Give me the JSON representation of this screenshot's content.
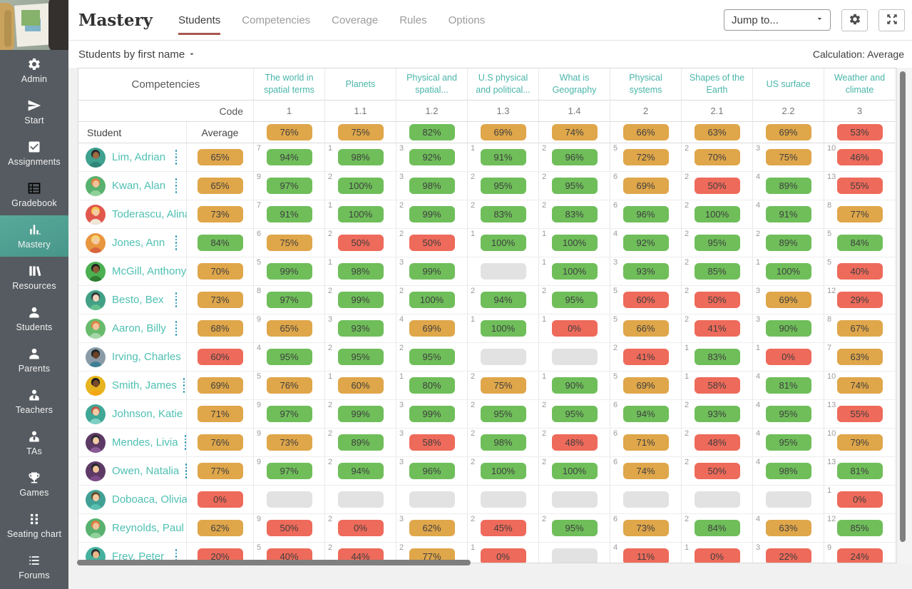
{
  "header": {
    "title": "Mastery",
    "tabs": [
      {
        "label": "Students",
        "active": true
      },
      {
        "label": "Competencies",
        "active": false
      },
      {
        "label": "Coverage",
        "active": false
      },
      {
        "label": "Rules",
        "active": false
      },
      {
        "label": "Options",
        "active": false
      }
    ],
    "jump_to_label": "Jump to..."
  },
  "subheader": {
    "sort_label": "Students by first name",
    "calculation_label": "Calculation: Average"
  },
  "sidebar": {
    "items": [
      {
        "label": "Admin",
        "icon": "gear-icon",
        "active": false
      },
      {
        "label": "Start",
        "icon": "send-icon",
        "active": false
      },
      {
        "label": "Assignments",
        "icon": "checkbox-icon",
        "active": false
      },
      {
        "label": "Gradebook",
        "icon": "gradebook-icon",
        "active": false
      },
      {
        "label": "Mastery",
        "icon": "bar-chart-icon",
        "active": true
      },
      {
        "label": "Resources",
        "icon": "books-icon",
        "active": false
      },
      {
        "label": "Students",
        "icon": "person-icon",
        "active": false
      },
      {
        "label": "Parents",
        "icon": "person-icon",
        "active": false
      },
      {
        "label": "Teachers",
        "icon": "person-tie-icon",
        "active": false
      },
      {
        "label": "TAs",
        "icon": "person-tie-icon",
        "active": false
      },
      {
        "label": "Games",
        "icon": "trophy-icon",
        "active": false
      },
      {
        "label": "Seating chart",
        "icon": "seating-grid-icon",
        "active": false
      },
      {
        "label": "Forums",
        "icon": "forum-list-icon",
        "active": false
      }
    ]
  },
  "colors": {
    "green": "#6fbe5a",
    "orange": "#dfa64a",
    "red": "#ee6a5a",
    "empty": "#e2e2e2",
    "accent_teal": "#4dbcae",
    "tab_underline": "#a8564f",
    "sidebar_active": "#4f9f91",
    "scrollbar": "#7f7f7f"
  },
  "table": {
    "corner_label": "Competencies",
    "code_label": "Code",
    "student_label": "Student",
    "average_label": "Average",
    "columns": [
      {
        "name": "The world in spatial terms",
        "code": "1",
        "avg": "76%",
        "avg_color": "orange"
      },
      {
        "name": "Planets",
        "code": "1.1",
        "avg": "75%",
        "avg_color": "orange"
      },
      {
        "name": "Physical and spatial...",
        "code": "1.2",
        "avg": "82%",
        "avg_color": "green"
      },
      {
        "name": "U.S physical and political...",
        "code": "1.3",
        "avg": "69%",
        "avg_color": "orange"
      },
      {
        "name": "What is Geography",
        "code": "1.4",
        "avg": "74%",
        "avg_color": "orange"
      },
      {
        "name": "Physical systems",
        "code": "2",
        "avg": "66%",
        "avg_color": "orange"
      },
      {
        "name": "Shapes of the Earth",
        "code": "2.1",
        "avg": "63%",
        "avg_color": "orange"
      },
      {
        "name": "US surface",
        "code": "2.2",
        "avg": "69%",
        "avg_color": "orange"
      },
      {
        "name": "Weather and climate",
        "code": "3",
        "avg": "53%",
        "avg_color": "red"
      }
    ],
    "students": [
      {
        "name": "Lim, Adrian",
        "avg": "65%",
        "avg_color": "orange",
        "avatar": {
          "bg": "#3fa18f",
          "skin": "#9c6b43",
          "hair": "#26292b",
          "shirt": "#2f8577"
        },
        "cells": [
          [
            "7",
            "94%",
            "green"
          ],
          [
            "1",
            "98%",
            "green"
          ],
          [
            "3",
            "92%",
            "green"
          ],
          [
            "1",
            "91%",
            "green"
          ],
          [
            "2",
            "96%",
            "green"
          ],
          [
            "5",
            "72%",
            "orange"
          ],
          [
            "2",
            "70%",
            "orange"
          ],
          [
            "3",
            "75%",
            "orange"
          ],
          [
            "10",
            "46%",
            "red"
          ]
        ]
      },
      {
        "name": "Kwan, Alan",
        "avg": "65%",
        "avg_color": "orange",
        "avatar": {
          "bg": "#58b16e",
          "skin": "#f0c39b",
          "hair": "#e0813f",
          "shirt": "#8fd19a"
        },
        "cells": [
          [
            "9",
            "97%",
            "green"
          ],
          [
            "2",
            "100%",
            "green"
          ],
          [
            "3",
            "98%",
            "green"
          ],
          [
            "2",
            "95%",
            "green"
          ],
          [
            "2",
            "95%",
            "green"
          ],
          [
            "6",
            "69%",
            "orange"
          ],
          [
            "2",
            "50%",
            "red"
          ],
          [
            "4",
            "89%",
            "green"
          ],
          [
            "13",
            "55%",
            "red"
          ]
        ]
      },
      {
        "name": "Toderascu, Alina",
        "avg": "73%",
        "avg_color": "orange",
        "avatar": {
          "bg": "#e2574c",
          "skin": "#f3cba5",
          "hair": "#f2c94c",
          "shirt": "#efe6d5"
        },
        "cells": [
          [
            "7",
            "91%",
            "green"
          ],
          [
            "1",
            "100%",
            "green"
          ],
          [
            "2",
            "99%",
            "green"
          ],
          [
            "2",
            "83%",
            "green"
          ],
          [
            "2",
            "83%",
            "green"
          ],
          [
            "6",
            "96%",
            "green"
          ],
          [
            "2",
            "100%",
            "green"
          ],
          [
            "4",
            "91%",
            "green"
          ],
          [
            "8",
            "77%",
            "orange"
          ]
        ]
      },
      {
        "name": "Jones, Ann",
        "avg": "84%",
        "avg_color": "green",
        "avatar": {
          "bg": "#e8963f",
          "skin": "#f3cba5",
          "hair": "#f5d76e",
          "shirt": "#d9653f"
        },
        "cells": [
          [
            "6",
            "75%",
            "orange"
          ],
          [
            "2",
            "50%",
            "red"
          ],
          [
            "2",
            "50%",
            "red"
          ],
          [
            "1",
            "100%",
            "green"
          ],
          [
            "1",
            "100%",
            "green"
          ],
          [
            "4",
            "92%",
            "green"
          ],
          [
            "2",
            "95%",
            "green"
          ],
          [
            "2",
            "89%",
            "green"
          ],
          [
            "5",
            "84%",
            "green"
          ]
        ]
      },
      {
        "name": "McGill, Anthony",
        "avg": "70%",
        "avg_color": "orange",
        "avatar": {
          "bg": "#4caf50",
          "skin": "#8a5a33",
          "hair": "#222222",
          "shirt": "#2e7d32"
        },
        "cells": [
          [
            "5",
            "99%",
            "green"
          ],
          [
            "1",
            "98%",
            "green"
          ],
          [
            "3",
            "99%",
            "green"
          ],
          [
            "",
            "",
            "empty"
          ],
          [
            "1",
            "100%",
            "green"
          ],
          [
            "3",
            "93%",
            "green"
          ],
          [
            "2",
            "85%",
            "green"
          ],
          [
            "1",
            "100%",
            "green"
          ],
          [
            "5",
            "40%",
            "red"
          ]
        ]
      },
      {
        "name": "Besto, Bex",
        "avg": "73%",
        "avg_color": "orange",
        "avatar": {
          "bg": "#41a085",
          "skin": "#f5d5c0",
          "hair": "#33383b",
          "shirt": "#63c08f"
        },
        "cells": [
          [
            "8",
            "97%",
            "green"
          ],
          [
            "2",
            "99%",
            "green"
          ],
          [
            "2",
            "100%",
            "green"
          ],
          [
            "2",
            "94%",
            "green"
          ],
          [
            "2",
            "95%",
            "green"
          ],
          [
            "5",
            "60%",
            "red"
          ],
          [
            "2",
            "50%",
            "red"
          ],
          [
            "3",
            "69%",
            "orange"
          ],
          [
            "12",
            "29%",
            "red"
          ]
        ]
      },
      {
        "name": "Aaron, Billy",
        "avg": "68%",
        "avg_color": "orange",
        "avatar": {
          "bg": "#68bb6c",
          "skin": "#f0c39b",
          "hair": "#e0823f",
          "shirt": "#a5d6a7"
        },
        "cells": [
          [
            "9",
            "65%",
            "orange"
          ],
          [
            "3",
            "93%",
            "green"
          ],
          [
            "4",
            "69%",
            "orange"
          ],
          [
            "1",
            "100%",
            "green"
          ],
          [
            "1",
            "0%",
            "red"
          ],
          [
            "5",
            "66%",
            "orange"
          ],
          [
            "2",
            "41%",
            "red"
          ],
          [
            "3",
            "90%",
            "green"
          ],
          [
            "8",
            "67%",
            "orange"
          ]
        ]
      },
      {
        "name": "Irving, Charles",
        "avg": "60%",
        "avg_color": "red",
        "avatar": {
          "bg": "#8a9ba8",
          "skin": "#6b4226",
          "hair": "#1f2426",
          "shirt": "#3f7f95"
        },
        "cells": [
          [
            "4",
            "95%",
            "green"
          ],
          [
            "2",
            "95%",
            "green"
          ],
          [
            "2",
            "95%",
            "green"
          ],
          [
            "",
            "",
            "empty"
          ],
          [
            "",
            "",
            "empty"
          ],
          [
            "2",
            "41%",
            "red"
          ],
          [
            "1",
            "83%",
            "green"
          ],
          [
            "1",
            "0%",
            "red"
          ],
          [
            "7",
            "63%",
            "orange"
          ]
        ]
      },
      {
        "name": "Smith, James",
        "avg": "69%",
        "avg_color": "orange",
        "avatar": {
          "bg": "#e7b41f",
          "skin": "#7a4a2b",
          "hair": "#191d1f",
          "shirt": "#f3a712"
        },
        "cells": [
          [
            "5",
            "76%",
            "orange"
          ],
          [
            "1",
            "60%",
            "orange"
          ],
          [
            "1",
            "80%",
            "green"
          ],
          [
            "2",
            "75%",
            "orange"
          ],
          [
            "1",
            "90%",
            "green"
          ],
          [
            "5",
            "69%",
            "orange"
          ],
          [
            "1",
            "58%",
            "red"
          ],
          [
            "4",
            "81%",
            "green"
          ],
          [
            "10",
            "74%",
            "orange"
          ]
        ]
      },
      {
        "name": "Johnson, Katie",
        "avg": "71%",
        "avg_color": "orange",
        "avatar": {
          "bg": "#3fa796",
          "skin": "#f3cba5",
          "hair": "#bf5a4e",
          "shirt": "#7fd0c4"
        },
        "cells": [
          [
            "9",
            "97%",
            "green"
          ],
          [
            "2",
            "99%",
            "green"
          ],
          [
            "3",
            "99%",
            "green"
          ],
          [
            "2",
            "95%",
            "green"
          ],
          [
            "2",
            "95%",
            "green"
          ],
          [
            "6",
            "94%",
            "green"
          ],
          [
            "2",
            "93%",
            "green"
          ],
          [
            "4",
            "95%",
            "green"
          ],
          [
            "13",
            "55%",
            "red"
          ]
        ]
      },
      {
        "name": "Mendes, Livia",
        "avg": "76%",
        "avg_color": "orange",
        "avatar": {
          "bg": "#5d3a66",
          "skin": "#f3cba5",
          "hair": "#2b2b30",
          "shirt": "#8a5a96"
        },
        "cells": [
          [
            "9",
            "73%",
            "orange"
          ],
          [
            "2",
            "89%",
            "green"
          ],
          [
            "3",
            "58%",
            "red"
          ],
          [
            "2",
            "98%",
            "green"
          ],
          [
            "2",
            "48%",
            "red"
          ],
          [
            "6",
            "71%",
            "orange"
          ],
          [
            "2",
            "48%",
            "red"
          ],
          [
            "4",
            "95%",
            "green"
          ],
          [
            "10",
            "79%",
            "orange"
          ]
        ]
      },
      {
        "name": "Owen, Natalia",
        "avg": "77%",
        "avg_color": "orange",
        "avatar": {
          "bg": "#5d3a66",
          "skin": "#f0c39b",
          "hair": "#26262b",
          "shirt": "#7b4b87"
        },
        "cells": [
          [
            "9",
            "97%",
            "green"
          ],
          [
            "2",
            "94%",
            "green"
          ],
          [
            "3",
            "96%",
            "green"
          ],
          [
            "2",
            "100%",
            "green"
          ],
          [
            "2",
            "100%",
            "green"
          ],
          [
            "6",
            "74%",
            "orange"
          ],
          [
            "2",
            "50%",
            "red"
          ],
          [
            "4",
            "98%",
            "green"
          ],
          [
            "13",
            "81%",
            "green"
          ]
        ]
      },
      {
        "name": "Doboaca, Olivia",
        "avg": "0%",
        "avg_color": "red",
        "avatar": {
          "bg": "#41a095",
          "skin": "#f3cba5",
          "hair": "#6b4a2b",
          "shirt": "#59bfae"
        },
        "cells": [
          [
            "",
            "",
            "empty"
          ],
          [
            "",
            "",
            "empty"
          ],
          [
            "",
            "",
            "empty"
          ],
          [
            "",
            "",
            "empty"
          ],
          [
            "",
            "",
            "empty"
          ],
          [
            "",
            "",
            "empty"
          ],
          [
            "",
            "",
            "empty"
          ],
          [
            "",
            "",
            "empty"
          ],
          [
            "1",
            "0%",
            "red"
          ]
        ]
      },
      {
        "name": "Reynolds, Paul",
        "avg": "62%",
        "avg_color": "orange",
        "avatar": {
          "bg": "#58b16e",
          "skin": "#f0c39b",
          "hair": "#e07a3f",
          "shirt": "#8fd19a"
        },
        "cells": [
          [
            "9",
            "50%",
            "red"
          ],
          [
            "2",
            "0%",
            "red"
          ],
          [
            "3",
            "62%",
            "orange"
          ],
          [
            "2",
            "45%",
            "red"
          ],
          [
            "2",
            "95%",
            "green"
          ],
          [
            "6",
            "73%",
            "orange"
          ],
          [
            "2",
            "84%",
            "green"
          ],
          [
            "4",
            "63%",
            "orange"
          ],
          [
            "12",
            "85%",
            "green"
          ]
        ]
      },
      {
        "name": "Frey, Peter",
        "avg": "20%",
        "avg_color": "red",
        "avatar": {
          "bg": "#45b19f",
          "skin": "#e8b88a",
          "hair": "#2b2f31",
          "shirt": "#6cc7b6"
        },
        "cells": [
          [
            "5",
            "40%",
            "red"
          ],
          [
            "2",
            "44%",
            "red"
          ],
          [
            "2",
            "77%",
            "orange"
          ],
          [
            "1",
            "0%",
            "red"
          ],
          [
            "",
            "",
            "empty"
          ],
          [
            "4",
            "11%",
            "red"
          ],
          [
            "1",
            "0%",
            "red"
          ],
          [
            "3",
            "22%",
            "red"
          ],
          [
            "9",
            "24%",
            "red"
          ]
        ]
      }
    ]
  }
}
